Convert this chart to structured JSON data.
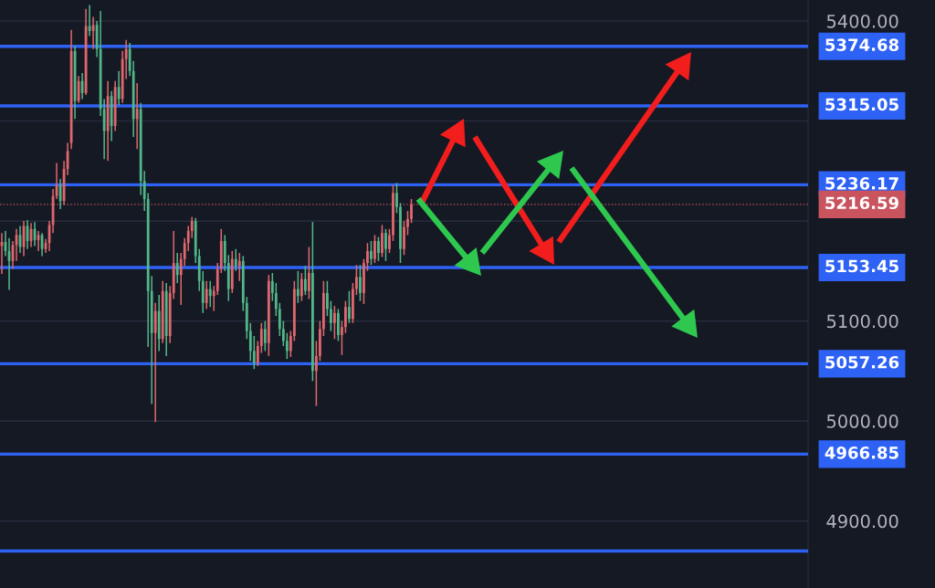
{
  "chart_data": {
    "type": "candlestick",
    "categories": [
      null,
      null,
      null,
      null,
      null,
      null,
      null,
      null,
      null,
      null,
      null,
      null,
      null,
      null,
      null,
      null,
      null,
      null,
      null,
      null,
      null,
      null,
      null,
      null,
      null,
      null,
      null,
      null,
      null,
      null,
      null,
      null,
      null,
      null,
      null,
      null,
      null,
      null,
      null,
      null,
      null,
      null,
      null,
      null,
      null,
      null,
      null,
      null,
      null,
      null,
      null,
      null,
      null,
      null,
      null,
      null,
      null,
      null,
      null,
      null,
      null,
      null,
      null,
      null,
      null,
      null,
      null,
      null,
      null,
      null,
      null,
      null,
      null,
      null,
      null,
      null,
      null,
      null,
      null,
      null,
      null,
      null,
      null,
      null,
      null,
      null,
      null,
      null,
      null,
      null,
      null,
      null,
      null,
      null,
      null,
      null,
      null,
      null,
      null,
      null,
      null,
      null,
      null,
      null,
      null,
      null,
      null,
      null,
      null,
      null,
      null,
      null,
      null,
      null,
      null,
      null,
      null,
      null,
      null,
      null,
      null,
      null,
      null,
      null,
      null,
      null,
      null,
      null,
      null,
      null,
      null,
      null,
      null,
      null,
      null,
      null,
      null,
      null,
      null,
      null,
      null,
      null,
      null,
      null,
      null,
      null,
      null,
      null,
      null,
      null,
      null,
      null,
      null,
      null,
      null,
      null,
      null,
      null,
      null,
      null,
      null,
      null,
      null,
      null,
      null,
      null,
      null,
      null,
      null,
      null,
      null,
      null,
      null,
      null,
      null,
      null,
      null,
      null,
      null,
      null,
      null,
      null,
      null,
      null,
      null,
      null,
      null,
      null,
      null,
      null,
      null,
      null,
      null,
      null,
      null,
      null,
      null,
      null,
      null,
      null,
      null,
      null,
      null,
      null,
      null,
      null,
      null,
      null,
      null,
      null,
      null,
      null,
      null,
      null,
      null,
      null,
      null,
      null,
      null,
      null,
      null
    ],
    "ohlc": [
      [
        5175,
        5188,
        5147,
        5179
      ],
      [
        5179,
        5190,
        5165,
        5170
      ],
      [
        5170,
        5183,
        5131,
        5160
      ],
      [
        5160,
        5180,
        5152,
        5176
      ],
      [
        5176,
        5192,
        5160,
        5186
      ],
      [
        5186,
        5195,
        5168,
        5174
      ],
      [
        5174,
        5200,
        5165,
        5195
      ],
      [
        5195,
        5201,
        5172,
        5180
      ],
      [
        5180,
        5198,
        5174,
        5192
      ],
      [
        5192,
        5199,
        5175,
        5181
      ],
      [
        5181,
        5190,
        5170,
        5186
      ],
      [
        5186,
        5188,
        5165,
        5172
      ],
      [
        5172,
        5182,
        5168,
        5178
      ],
      [
        5178,
        5200,
        5170,
        5196
      ],
      [
        5196,
        5232,
        5188,
        5225
      ],
      [
        5225,
        5258,
        5222,
        5236
      ],
      [
        5236,
        5242,
        5212,
        5220
      ],
      [
        5220,
        5260,
        5216,
        5252
      ],
      [
        5252,
        5278,
        5246,
        5270
      ],
      [
        5278,
        5391,
        5272,
        5370
      ],
      [
        5370,
        5375,
        5302,
        5320
      ],
      [
        5320,
        5345,
        5318,
        5340
      ],
      [
        5340,
        5348,
        5322,
        5328
      ],
      [
        5328,
        5412,
        5326,
        5395
      ],
      [
        5395,
        5416,
        5385,
        5390
      ],
      [
        5390,
        5404,
        5372,
        5396
      ],
      [
        5396,
        5400,
        5364,
        5372
      ],
      [
        5372,
        5410,
        5305,
        5312
      ],
      [
        5312,
        5322,
        5262,
        5290
      ],
      [
        5290,
        5340,
        5260,
        5325
      ],
      [
        5325,
        5330,
        5280,
        5295
      ],
      [
        5295,
        5340,
        5290,
        5334
      ],
      [
        5334,
        5350,
        5316,
        5322
      ],
      [
        5322,
        5370,
        5318,
        5362
      ],
      [
        5362,
        5381,
        5342,
        5372
      ],
      [
        5372,
        5378,
        5345,
        5350
      ],
      [
        5350,
        5360,
        5284,
        5302
      ],
      [
        5302,
        5338,
        5272,
        5312
      ],
      [
        5312,
        5318,
        5226,
        5240
      ],
      [
        5240,
        5250,
        5210,
        5222
      ],
      [
        5222,
        5228,
        5074,
        5130
      ],
      [
        5130,
        5145,
        5017,
        5088
      ],
      [
        5088,
        5118,
        4999,
        5110
      ],
      [
        5110,
        5126,
        5070,
        5082
      ],
      [
        5082,
        5140,
        5078,
        5130
      ],
      [
        5130,
        5138,
        5065,
        5085
      ],
      [
        5085,
        5135,
        5078,
        5128
      ],
      [
        5128,
        5190,
        5122,
        5158
      ],
      [
        5158,
        5168,
        5138,
        5146
      ],
      [
        5146,
        5168,
        5116,
        5162
      ],
      [
        5162,
        5183,
        5155,
        5178
      ],
      [
        5178,
        5195,
        5170,
        5190
      ],
      [
        5190,
        5204,
        5183,
        5200
      ],
      [
        5200,
        5203,
        5158,
        5165
      ],
      [
        5165,
        5172,
        5130,
        5140
      ],
      [
        5140,
        5150,
        5108,
        5118
      ],
      [
        5118,
        5140,
        5112,
        5132
      ],
      [
        5132,
        5140,
        5114,
        5125
      ],
      [
        5125,
        5135,
        5110,
        5130
      ],
      [
        5130,
        5158,
        5126,
        5152
      ],
      [
        5152,
        5192,
        5148,
        5180
      ],
      [
        5180,
        5186,
        5150,
        5158
      ],
      [
        5158,
        5166,
        5120,
        5132
      ],
      [
        5132,
        5170,
        5128,
        5162
      ],
      [
        5162,
        5172,
        5150,
        5155
      ],
      [
        5155,
        5168,
        5140,
        5160
      ],
      [
        5160,
        5165,
        5110,
        5118
      ],
      [
        5118,
        5124,
        5082,
        5090
      ],
      [
        5090,
        5098,
        5060,
        5070
      ],
      [
        5070,
        5085,
        5052,
        5058
      ],
      [
        5058,
        5080,
        5055,
        5075
      ],
      [
        5075,
        5098,
        5068,
        5092
      ],
      [
        5092,
        5100,
        5070,
        5078
      ],
      [
        5078,
        5146,
        5065,
        5140
      ],
      [
        5140,
        5148,
        5120,
        5128
      ],
      [
        5128,
        5138,
        5105,
        5112
      ],
      [
        5112,
        5118,
        5085,
        5092
      ],
      [
        5092,
        5100,
        5075,
        5080
      ],
      [
        5080,
        5088,
        5062,
        5070
      ],
      [
        5070,
        5090,
        5064,
        5085
      ],
      [
        5085,
        5140,
        5080,
        5132
      ],
      [
        5132,
        5150,
        5118,
        5125
      ],
      [
        5125,
        5148,
        5120,
        5142
      ],
      [
        5142,
        5155,
        5126,
        5130
      ],
      [
        5130,
        5174,
        5122,
        5148
      ],
      [
        5148,
        5199,
        5040,
        5050
      ],
      [
        5050,
        5080,
        5015,
        5065
      ],
      [
        5065,
        5100,
        5060,
        5092
      ],
      [
        5092,
        5140,
        5085,
        5128
      ],
      [
        5128,
        5140,
        5105,
        5112
      ],
      [
        5112,
        5120,
        5090,
        5098
      ],
      [
        5098,
        5115,
        5082,
        5108
      ],
      [
        5108,
        5112,
        5080,
        5086
      ],
      [
        5086,
        5100,
        5066,
        5094
      ],
      [
        5094,
        5120,
        5088,
        5114
      ],
      [
        5114,
        5130,
        5098,
        5102
      ],
      [
        5102,
        5138,
        5098,
        5132
      ],
      [
        5132,
        5156,
        5126,
        5144
      ],
      [
        5144,
        5156,
        5120,
        5128
      ],
      [
        5128,
        5162,
        5117,
        5158
      ],
      [
        5158,
        5178,
        5150,
        5170
      ],
      [
        5170,
        5180,
        5156,
        5162
      ],
      [
        5162,
        5186,
        5158,
        5180
      ],
      [
        5180,
        5184,
        5160,
        5168
      ],
      [
        5168,
        5196,
        5164,
        5188
      ],
      [
        5188,
        5192,
        5160,
        5172
      ],
      [
        5172,
        5192,
        5168,
        5186
      ],
      [
        5186,
        5236,
        5180,
        5228
      ],
      [
        5228,
        5238,
        5208,
        5214
      ],
      [
        5214,
        5218,
        5158,
        5172
      ],
      [
        5172,
        5200,
        5166,
        5194
      ],
      [
        5194,
        5210,
        5186,
        5202
      ],
      [
        5202,
        5222,
        5198,
        5216.59
      ],
      null,
      null,
      null,
      null,
      null,
      null,
      null,
      null,
      null,
      null,
      null,
      null,
      null,
      null,
      null,
      null,
      null,
      null,
      null,
      null,
      null,
      null,
      null,
      null,
      null,
      null,
      null,
      null,
      null,
      null,
      null,
      null,
      null,
      null,
      null,
      null,
      null,
      null,
      null,
      null,
      null,
      null,
      null,
      null,
      null,
      null,
      null,
      null,
      null,
      null,
      null,
      null,
      null,
      null,
      null,
      null,
      null,
      null,
      null,
      null,
      null,
      null,
      null,
      null,
      null,
      null,
      null,
      null,
      null,
      null,
      null,
      null,
      null,
      null,
      null,
      null,
      null,
      null,
      null,
      null,
      null,
      null,
      null,
      null,
      null,
      null,
      null,
      null,
      null,
      null,
      null,
      null,
      null,
      null,
      null,
      null,
      null,
      null,
      null,
      null,
      null,
      null,
      null,
      null,
      null,
      null,
      null,
      null
    ],
    "ylim": [
      4833,
      5421
    ],
    "yticks": [
      {
        "value": 4900,
        "label": "4900.00"
      },
      {
        "value": 5000,
        "label": "5000.00"
      },
      {
        "value": 5100,
        "label": "5100.00"
      },
      {
        "value": 5200,
        "label": null
      },
      {
        "value": 5300,
        "label": null
      },
      {
        "value": 5400,
        "label": "5400.00"
      }
    ],
    "tick_labels": "y",
    "grid": "y",
    "ref_lines": [
      {
        "axis": "y",
        "value": 5374.68,
        "label": "5374.68",
        "color": "#2e62f5",
        "line_style": "solid"
      },
      {
        "axis": "y",
        "value": 5315.05,
        "label": "5315.05",
        "color": "#2e62f5",
        "line_style": "solid"
      },
      {
        "axis": "y",
        "value": 5236.17,
        "label": "5236.17",
        "color": "#2e62f5",
        "line_style": "solid"
      },
      {
        "axis": "y",
        "value": 5216.59,
        "label": "5216.59",
        "color": "#c9545e",
        "line_style": "dotted"
      },
      {
        "axis": "y",
        "value": 5153.45,
        "label": "5153.45",
        "color": "#2e62f5",
        "line_style": "solid"
      },
      {
        "axis": "y",
        "value": 5057.26,
        "label": "5057.26",
        "color": "#2e62f5",
        "line_style": "solid"
      },
      {
        "axis": "y",
        "value": 4966.85,
        "label": "4966.85",
        "color": "#2e62f5",
        "line_style": "solid"
      },
      {
        "axis": "y",
        "value": 4870,
        "label": null,
        "color": "#2e62f5",
        "line_style": "solid"
      }
    ]
  }
}
